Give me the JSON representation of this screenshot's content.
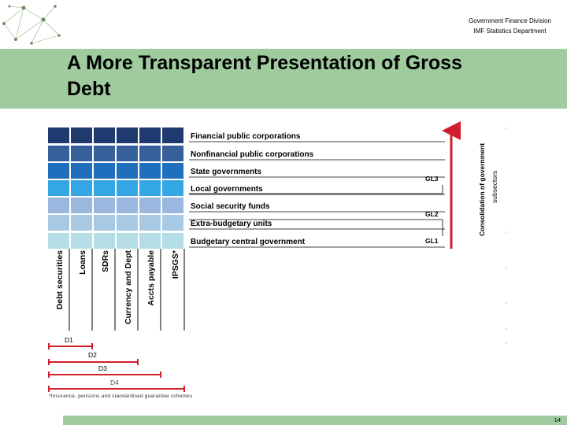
{
  "header": {
    "division": "Government Finance Division",
    "department": "IMF Statistics Department"
  },
  "title": "A More Transparent Presentation of Gross Debt",
  "title_lines": [
    "A More Transparent Presentation of Gross",
    "Debt"
  ],
  "colors": {
    "band": "#9fcb9f",
    "row_colors": [
      "#1f3a6e",
      "#35609a",
      "#1f6fbd",
      "#33a7e4",
      "#9ab8df",
      "#a8c9e4",
      "#b4dde6"
    ],
    "arrow": "#d01f2b"
  },
  "diagram": {
    "sectors": [
      "Financial public corporations",
      "Nonfinancial public corporations",
      "State governments",
      "Local governments",
      "Social security funds",
      "Extra-budgetary units",
      "Budgetary central government"
    ],
    "instruments": [
      "Debt securities",
      "Loans",
      "SDRs",
      "Currency and Dept",
      "Accts payable",
      "IPSGS*"
    ],
    "levels": [
      "GL3",
      "GL2",
      "GL1"
    ],
    "debt_aggregates": [
      "D1",
      "D2",
      "D3",
      "D4"
    ],
    "consolidation_label": [
      "Consolidation of government",
      "subsectors"
    ]
  },
  "footnote": "*Insurance, pensions and standardised guarantee schemes",
  "page_number": "14"
}
